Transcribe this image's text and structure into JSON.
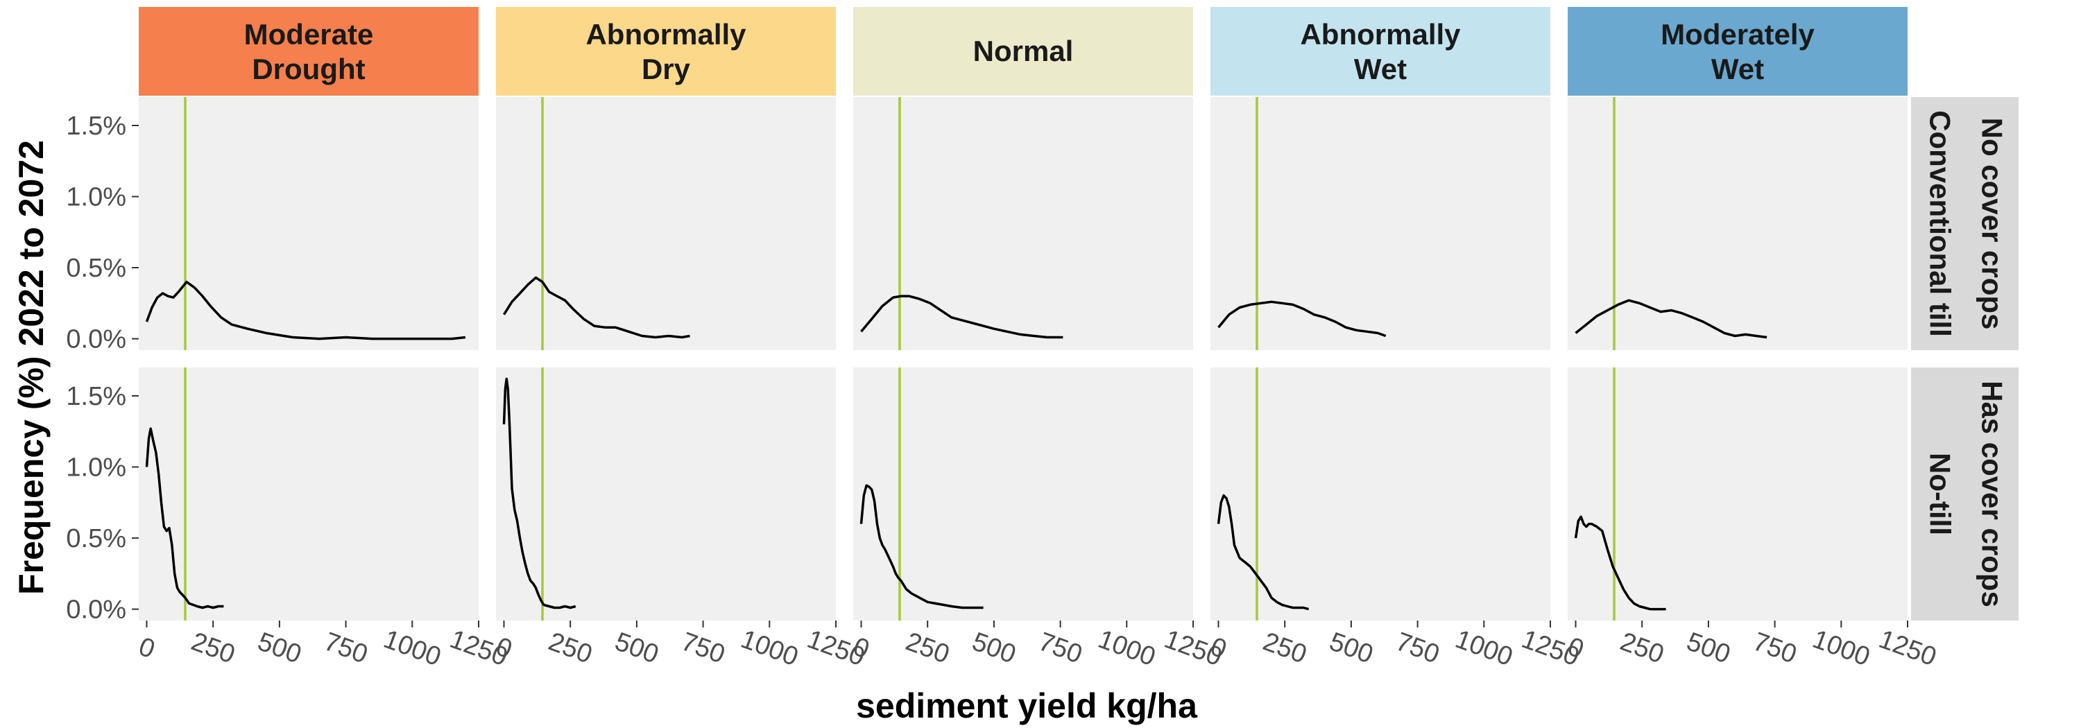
{
  "chart_data": {
    "type": "line",
    "xlabel": "sediment yield kg/ha",
    "ylabel": "Frequency (%) 2022 to 2072",
    "x_ticks": [
      0,
      250,
      500,
      750,
      1000,
      1250
    ],
    "x_tick_labels": [
      "0",
      "250",
      "500",
      "750",
      "1000",
      "1250"
    ],
    "xlim": [
      -30,
      1250
    ],
    "y_ticks": [
      0,
      0.5,
      1.0,
      1.5
    ],
    "y_tick_labels": [
      "0.0%",
      "0.5%",
      "1.0%",
      "1.5%"
    ],
    "ylim": [
      -0.08,
      1.7
    ],
    "vline_x": 145,
    "grid": false,
    "colors": {
      "panel_bg": "#f0f0f0",
      "line": "#000000",
      "vline": "#a6c93a",
      "row_strip": "#d9d9d9",
      "strip_moderate_drought": "#f5804d",
      "strip_abnormally_dry": "#fcd98a",
      "strip_normal": "#ebebcc",
      "strip_abnormally_wet": "#c3e4ef",
      "strip_moderately_wet": "#6ba8cf"
    },
    "columns": [
      {
        "label_lines": [
          "Moderate",
          "Drought"
        ],
        "color_key": "strip_moderate_drought"
      },
      {
        "label_lines": [
          "Abnormally",
          "Dry"
        ],
        "color_key": "strip_abnormally_dry"
      },
      {
        "label_lines": [
          "Normal"
        ],
        "color_key": "strip_normal"
      },
      {
        "label_lines": [
          "Abnormally",
          "Wet"
        ],
        "color_key": "strip_abnormally_wet"
      },
      {
        "label_lines": [
          "Moderately",
          "Wet"
        ],
        "color_key": "strip_moderately_wet"
      }
    ],
    "rows": [
      {
        "label_lines": [
          "No cover crops",
          "Conventional till"
        ]
      },
      {
        "label_lines": [
          "Has cover crops",
          "No-till"
        ]
      }
    ],
    "panels": [
      [
        {
          "x": [
            0,
            20,
            40,
            60,
            80,
            100,
            120,
            150,
            180,
            210,
            240,
            280,
            320,
            380,
            450,
            550,
            650,
            750,
            850,
            950,
            1050,
            1150,
            1200
          ],
          "y": [
            0.12,
            0.22,
            0.29,
            0.32,
            0.3,
            0.29,
            0.33,
            0.4,
            0.36,
            0.3,
            0.23,
            0.15,
            0.1,
            0.07,
            0.04,
            0.01,
            0.0,
            0.01,
            0.0,
            0.0,
            0.0,
            0.0,
            0.01
          ]
        },
        {
          "x": [
            0,
            30,
            60,
            90,
            120,
            145,
            170,
            200,
            230,
            260,
            300,
            340,
            380,
            420,
            470,
            520,
            570,
            620,
            670,
            700
          ],
          "y": [
            0.17,
            0.26,
            0.32,
            0.38,
            0.43,
            0.4,
            0.33,
            0.3,
            0.27,
            0.21,
            0.14,
            0.09,
            0.08,
            0.08,
            0.05,
            0.02,
            0.01,
            0.02,
            0.01,
            0.02
          ]
        },
        {
          "x": [
            0,
            40,
            80,
            120,
            150,
            180,
            220,
            260,
            300,
            340,
            380,
            420,
            460,
            500,
            550,
            600,
            650,
            700,
            760
          ],
          "y": [
            0.05,
            0.14,
            0.23,
            0.29,
            0.3,
            0.3,
            0.28,
            0.25,
            0.2,
            0.15,
            0.13,
            0.11,
            0.09,
            0.07,
            0.05,
            0.03,
            0.02,
            0.01,
            0.01
          ]
        },
        {
          "x": [
            0,
            40,
            80,
            120,
            160,
            200,
            240,
            280,
            320,
            360,
            400,
            440,
            480,
            520,
            560,
            600,
            630
          ],
          "y": [
            0.08,
            0.17,
            0.22,
            0.24,
            0.25,
            0.26,
            0.25,
            0.24,
            0.21,
            0.17,
            0.15,
            0.12,
            0.08,
            0.06,
            0.05,
            0.04,
            0.02
          ]
        },
        {
          "x": [
            0,
            40,
            80,
            120,
            160,
            200,
            240,
            280,
            320,
            360,
            400,
            440,
            480,
            520,
            560,
            600,
            640,
            680,
            720
          ],
          "y": [
            0.04,
            0.1,
            0.16,
            0.2,
            0.24,
            0.27,
            0.25,
            0.22,
            0.19,
            0.2,
            0.18,
            0.15,
            0.12,
            0.08,
            0.04,
            0.02,
            0.03,
            0.02,
            0.01
          ]
        }
      ],
      [
        {
          "x": [
            0,
            8,
            15,
            25,
            35,
            45,
            55,
            65,
            75,
            85,
            95,
            105,
            115,
            125,
            135,
            145,
            160,
            175,
            190,
            210,
            230,
            250,
            270,
            290
          ],
          "y": [
            1.0,
            1.2,
            1.27,
            1.18,
            1.1,
            0.95,
            0.75,
            0.58,
            0.55,
            0.57,
            0.45,
            0.25,
            0.15,
            0.12,
            0.1,
            0.08,
            0.04,
            0.03,
            0.02,
            0.01,
            0.02,
            0.01,
            0.02,
            0.02
          ]
        },
        {
          "x": [
            0,
            5,
            10,
            15,
            20,
            25,
            30,
            40,
            50,
            60,
            70,
            80,
            90,
            100,
            110,
            120,
            130,
            140,
            150,
            170,
            190,
            210,
            230,
            250,
            270
          ],
          "y": [
            1.3,
            1.55,
            1.62,
            1.55,
            1.35,
            1.1,
            0.85,
            0.7,
            0.62,
            0.5,
            0.4,
            0.32,
            0.25,
            0.2,
            0.18,
            0.15,
            0.1,
            0.06,
            0.03,
            0.02,
            0.01,
            0.01,
            0.02,
            0.01,
            0.02
          ]
        },
        {
          "x": [
            0,
            10,
            20,
            30,
            40,
            50,
            60,
            70,
            80,
            90,
            100,
            110,
            120,
            130,
            140,
            150,
            170,
            190,
            220,
            250,
            280,
            310,
            340,
            380,
            420,
            460
          ],
          "y": [
            0.6,
            0.8,
            0.87,
            0.86,
            0.84,
            0.76,
            0.6,
            0.5,
            0.45,
            0.42,
            0.38,
            0.34,
            0.3,
            0.25,
            0.22,
            0.2,
            0.14,
            0.11,
            0.08,
            0.05,
            0.04,
            0.03,
            0.02,
            0.01,
            0.01,
            0.01
          ]
        },
        {
          "x": [
            0,
            10,
            20,
            30,
            40,
            50,
            60,
            80,
            100,
            120,
            140,
            160,
            180,
            200,
            220,
            240,
            260,
            280,
            300,
            320,
            340
          ],
          "y": [
            0.6,
            0.75,
            0.8,
            0.78,
            0.72,
            0.6,
            0.45,
            0.36,
            0.33,
            0.3,
            0.25,
            0.2,
            0.15,
            0.08,
            0.05,
            0.03,
            0.02,
            0.01,
            0.01,
            0.01,
            0.0
          ]
        },
        {
          "x": [
            0,
            10,
            20,
            30,
            40,
            50,
            60,
            80,
            100,
            120,
            140,
            160,
            180,
            200,
            220,
            240,
            260,
            280,
            300,
            340
          ],
          "y": [
            0.5,
            0.62,
            0.65,
            0.6,
            0.58,
            0.6,
            0.6,
            0.58,
            0.55,
            0.42,
            0.3,
            0.22,
            0.14,
            0.08,
            0.04,
            0.02,
            0.01,
            0.0,
            0.0,
            0.0
          ]
        }
      ]
    ]
  }
}
